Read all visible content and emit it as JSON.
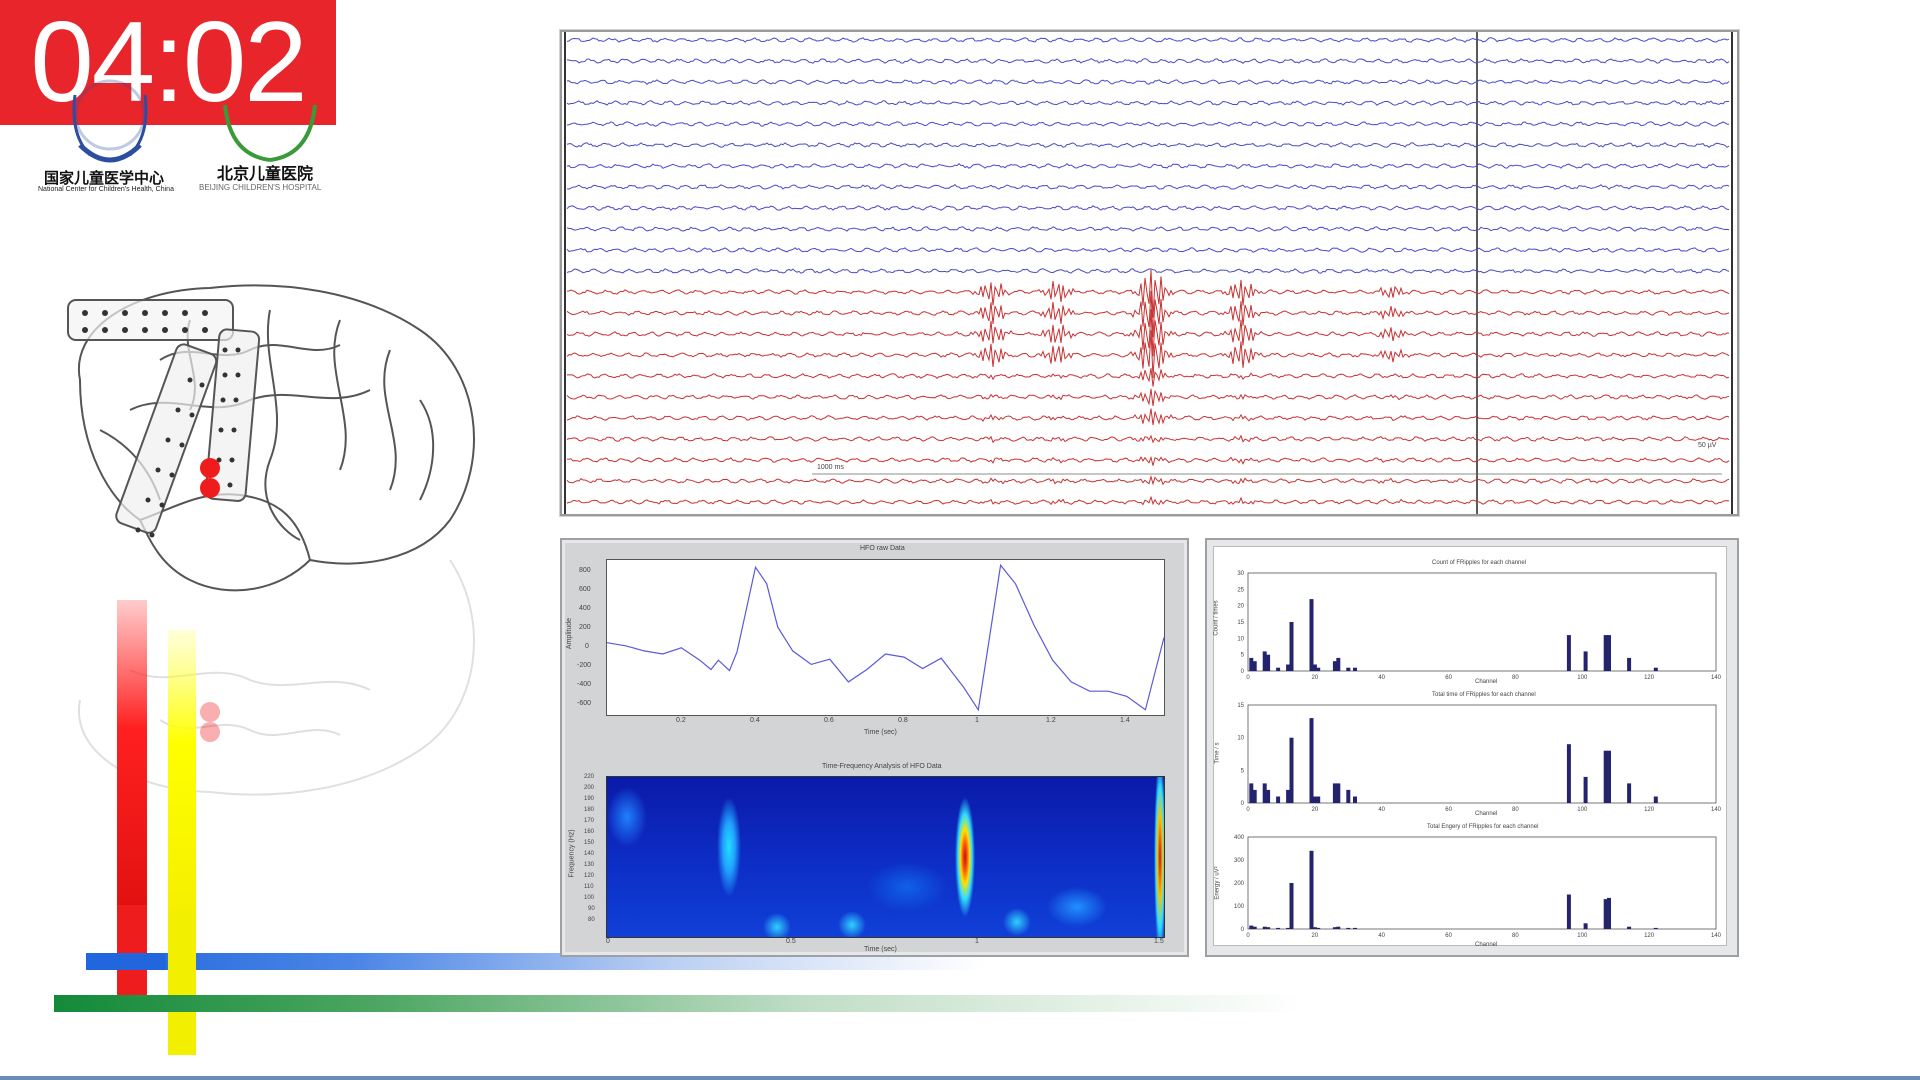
{
  "timer": {
    "text": "04:02"
  },
  "logos": {
    "left_cn": "国家儿童医学中心",
    "left_en": "National Center for Children's Health, China",
    "right_cn": "北京儿童医院",
    "right_en": "BEIJING CHILDREN'S HOSPITAL"
  },
  "eeg": {
    "scale_left_label": "1000 ms",
    "scale_right_label": "50 µV",
    "blue_channel_count": 12,
    "red_channel_count": 11,
    "colors": {
      "blue": "#4a4ac8",
      "red": "#c83232"
    }
  },
  "hfo_panel": {
    "raw_title": "HFO raw Data",
    "raw_ylabel": "Amplitude",
    "raw_xlabel": "Time (sec)",
    "raw_yticks": [
      "800",
      "600",
      "400",
      "200",
      "0",
      "-200",
      "-400",
      "-600"
    ],
    "raw_xticks": [
      "0.2",
      "0.4",
      "0.6",
      "0.8",
      "1",
      "1.2",
      "1.4"
    ],
    "tf_title": "Time-Frequency Analysis of HFO Data",
    "tf_ylabel": "Frequency (Hz)",
    "tf_xlabel": "Time (sec)",
    "tf_yticks": [
      "220",
      "200",
      "190",
      "180",
      "170",
      "160",
      "150",
      "140",
      "130",
      "120",
      "110",
      "100",
      "90",
      "80"
    ],
    "tf_xticks": [
      "0",
      "0.5",
      "1",
      "1.5"
    ]
  },
  "ripple_panel": {
    "chart1_title": "Count of FRipples for each channel",
    "chart1_ylabel": "Count / times",
    "chart1_yticks": [
      "30",
      "25",
      "20",
      "15",
      "10",
      "5",
      "0"
    ],
    "chart2_title": "Total time of FRipples for each channel",
    "chart2_ylabel": "Time / s",
    "chart2_yticks": [
      "15",
      "10",
      "5",
      "0"
    ],
    "chart3_title": "Total Engery of FRipples for each channel",
    "chart3_ylabel": "Energy / uV²",
    "chart3_yticks": [
      "400",
      "300",
      "200",
      "100",
      "0"
    ],
    "xlabel": "Channel",
    "xticks": [
      "0",
      "20",
      "40",
      "60",
      "80",
      "100",
      "120",
      "140"
    ]
  },
  "chart_data": [
    {
      "type": "line",
      "title": "HFO raw Data",
      "xlabel": "Time (sec)",
      "ylabel": "Amplitude",
      "xlim": [
        0,
        1.5
      ],
      "ylim": [
        -650,
        850
      ],
      "x": [
        0.0,
        0.05,
        0.1,
        0.15,
        0.2,
        0.25,
        0.28,
        0.3,
        0.33,
        0.35,
        0.38,
        0.4,
        0.43,
        0.46,
        0.5,
        0.55,
        0.6,
        0.65,
        0.7,
        0.75,
        0.8,
        0.85,
        0.9,
        0.93,
        0.96,
        1.0,
        1.03,
        1.06,
        1.1,
        1.15,
        1.2,
        1.25,
        1.3,
        1.35,
        1.4,
        1.45,
        1.5
      ],
      "series": [
        {
          "values": [
            50,
            20,
            -30,
            -60,
            0,
            -120,
            -210,
            -120,
            -220,
            -40,
            450,
            780,
            620,
            200,
            -30,
            -160,
            -110,
            -330,
            -210,
            -60,
            -90,
            -200,
            -100,
            -240,
            -380,
            -600,
            100,
            800,
            620,
            220,
            -120,
            -330,
            -420,
            -420,
            -470,
            -600,
            100
          ]
        }
      ]
    },
    {
      "type": "bar",
      "title": "Count of FRipples for each channel",
      "xlabel": "Channel",
      "ylabel": "Count / times",
      "xlim": [
        0,
        140
      ],
      "ylim": [
        0,
        30
      ],
      "x": [
        1,
        2,
        5,
        6,
        9,
        12,
        13,
        19,
        20,
        21,
        26,
        27,
        30,
        32,
        96,
        101,
        107,
        108,
        114,
        122
      ],
      "values": [
        4,
        3,
        6,
        5,
        1,
        2,
        15,
        22,
        2,
        1,
        3,
        4,
        1,
        1,
        11,
        6,
        11,
        11,
        4,
        1
      ]
    },
    {
      "type": "bar",
      "title": "Total time of FRipples for each channel",
      "xlabel": "Channel",
      "ylabel": "Time / s",
      "xlim": [
        0,
        140
      ],
      "ylim": [
        0,
        15
      ],
      "x": [
        1,
        2,
        5,
        6,
        9,
        12,
        13,
        19,
        20,
        21,
        26,
        27,
        30,
        32,
        96,
        101,
        107,
        108,
        114,
        122
      ],
      "values": [
        3,
        2,
        3,
        2,
        1,
        2,
        10,
        13,
        1,
        1,
        3,
        3,
        2,
        1,
        9,
        4,
        8,
        8,
        3,
        1
      ]
    },
    {
      "type": "bar",
      "title": "Total Engery of FRipples for each channel",
      "xlabel": "Channel",
      "ylabel": "Energy / uV²",
      "xlim": [
        0,
        140
      ],
      "ylim": [
        0,
        400
      ],
      "x": [
        1,
        2,
        5,
        6,
        9,
        12,
        13,
        19,
        20,
        21,
        26,
        27,
        30,
        32,
        96,
        101,
        107,
        108,
        114,
        122
      ],
      "values": [
        15,
        10,
        10,
        8,
        5,
        5,
        200,
        340,
        8,
        5,
        8,
        10,
        5,
        5,
        150,
        25,
        130,
        135,
        10,
        5
      ]
    }
  ]
}
